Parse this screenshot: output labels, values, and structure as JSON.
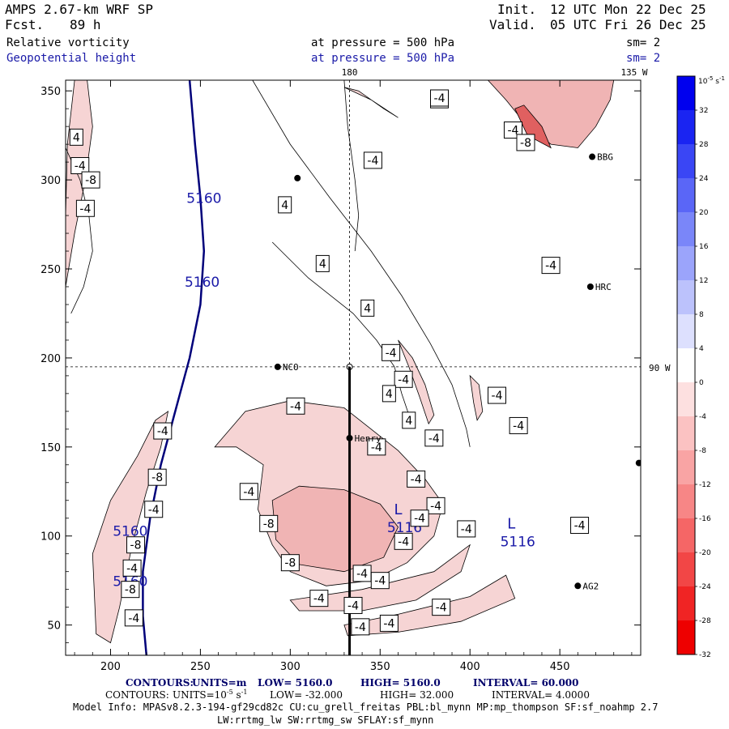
{
  "header": {
    "title": "AMPS 2.67-km WRF SP",
    "forecast_label": "Fcst.",
    "forecast_value": "89 h",
    "init_label": "Init.",
    "init_value": "12 UTC Mon 22 Dec 25",
    "valid_label": "Valid.",
    "valid_value": "05 UTC Fri 26 Dec 25",
    "field1": "Relative vorticity",
    "field2": "Geopotential height",
    "pressure1": "at pressure =  500 hPa",
    "pressure2": "at pressure =  500 hPa",
    "sm1": "sm= 2",
    "sm2": "sm= 2"
  },
  "colors": {
    "text": "#000000",
    "blue_text": "#1a1aa8",
    "height_contour": "#00007a",
    "footer_text": "#00006a",
    "neg_fill": "#f6d4d4",
    "neg_fill2": "#f0b4b4",
    "neg_fill3": "#e06060"
  },
  "chart_data": {
    "type": "contour",
    "title": "Relative vorticity / Geopotential height at 500 hPa",
    "xlim": [
      175,
      495
    ],
    "ylim": [
      33,
      356
    ],
    "x_ticks": [
      200,
      250,
      300,
      350,
      400,
      450
    ],
    "y_ticks": [
      50,
      100,
      150,
      200,
      250,
      300,
      350
    ],
    "top_label_180": "180",
    "top_label_135w": "135 W",
    "right_label_90w": "90 W",
    "ref_lines": {
      "x": 333,
      "y": 195
    },
    "stations": [
      {
        "name": "NCO",
        "x": 293,
        "y": 195
      },
      {
        "name": "Henry",
        "x": 333,
        "y": 155
      },
      {
        "name": "AG2",
        "x": 460,
        "y": 72
      },
      {
        "name": "HRC",
        "x": 467,
        "y": 240
      },
      {
        "name": "BBG",
        "x": 468,
        "y": 313
      },
      {
        "name": "",
        "x": 304,
        "y": 301
      },
      {
        "name": "",
        "x": 494,
        "y": 141
      }
    ],
    "cross_section": {
      "x": 333,
      "y_start": 195,
      "y_end": 33
    },
    "height_contour": {
      "value_label": "5160",
      "points": [
        [
          244,
          356
        ],
        [
          247,
          320
        ],
        [
          250,
          290
        ],
        [
          252,
          260
        ],
        [
          250,
          230
        ],
        [
          244,
          200
        ],
        [
          236,
          170
        ],
        [
          228,
          140
        ],
        [
          222,
          110
        ],
        [
          218,
          80
        ],
        [
          218,
          55
        ],
        [
          220,
          33
        ]
      ]
    },
    "height_labels": [
      {
        "text": "5160",
        "x": 252,
        "y": 287
      },
      {
        "text": "5160",
        "x": 251,
        "y": 240
      },
      {
        "text": "5160",
        "x": 211,
        "y": 100
      },
      {
        "text": "5160",
        "x": 211,
        "y": 72
      }
    ],
    "low_centers": [
      {
        "letter": "L",
        "value": "5116",
        "x": 360,
        "y": 104
      },
      {
        "letter": "L",
        "value": "5116",
        "x": 423,
        "y": 96
      }
    ],
    "vort_labels": [
      {
        "text": "-4",
        "x": 383,
        "y": 345
      },
      {
        "text": "-4",
        "x": 183,
        "y": 308
      },
      {
        "text": "-4",
        "x": 186,
        "y": 284
      },
      {
        "text": "4",
        "x": 181,
        "y": 324
      },
      {
        "text": "4",
        "x": 297,
        "y": 286
      },
      {
        "text": "4",
        "x": 318,
        "y": 253
      },
      {
        "text": "-4",
        "x": 346,
        "y": 311
      },
      {
        "text": "-4",
        "x": 383,
        "y": 346
      },
      {
        "text": "-4",
        "x": 424,
        "y": 328
      },
      {
        "text": "-4",
        "x": 445,
        "y": 252
      },
      {
        "text": "4",
        "x": 343,
        "y": 228
      },
      {
        "text": "-4",
        "x": 356,
        "y": 203
      },
      {
        "text": "-4",
        "x": 363,
        "y": 188
      },
      {
        "text": "4",
        "x": 355,
        "y": 180
      },
      {
        "text": "4",
        "x": 366,
        "y": 165
      },
      {
        "text": "-4",
        "x": 415,
        "y": 179
      },
      {
        "text": "-4",
        "x": 380,
        "y": 155
      },
      {
        "text": "-4",
        "x": 427,
        "y": 162
      },
      {
        "text": "-4",
        "x": 348,
        "y": 150
      },
      {
        "text": "-4",
        "x": 370,
        "y": 132
      },
      {
        "text": "-4",
        "x": 303,
        "y": 173
      },
      {
        "text": "-4",
        "x": 277,
        "y": 125
      },
      {
        "text": "-4",
        "x": 229,
        "y": 159
      },
      {
        "text": "-8",
        "x": 226,
        "y": 133
      },
      {
        "text": "-4",
        "x": 224,
        "y": 115
      },
      {
        "text": "-8",
        "x": 288,
        "y": 107
      },
      {
        "text": "-8",
        "x": 214,
        "y": 95
      },
      {
        "text": "-4",
        "x": 212,
        "y": 82
      },
      {
        "text": "-8",
        "x": 211,
        "y": 70
      },
      {
        "text": "-4",
        "x": 213,
        "y": 54
      },
      {
        "text": "-8",
        "x": 300,
        "y": 85
      },
      {
        "text": "-4",
        "x": 340,
        "y": 79
      },
      {
        "text": "-4",
        "x": 350,
        "y": 75
      },
      {
        "text": "-4",
        "x": 381,
        "y": 117
      },
      {
        "text": "-4",
        "x": 363,
        "y": 97
      },
      {
        "text": "-4",
        "x": 372,
        "y": 110
      },
      {
        "text": "-4",
        "x": 398,
        "y": 104
      },
      {
        "text": "-4",
        "x": 461,
        "y": 106
      },
      {
        "text": "-4",
        "x": 316,
        "y": 65
      },
      {
        "text": "-4",
        "x": 335,
        "y": 61
      },
      {
        "text": "-4",
        "x": 384,
        "y": 60
      },
      {
        "text": "-4",
        "x": 339,
        "y": 49
      },
      {
        "text": "-4",
        "x": 355,
        "y": 51
      },
      {
        "text": "-8",
        "x": 189,
        "y": 300
      },
      {
        "text": "-8",
        "x": 431,
        "y": 321
      }
    ],
    "vort_labels_note": "contour labels of relative vorticity (10^-5 s^-1)",
    "colorbar": {
      "unit": "10",
      "unit_exp": "-5",
      "unit_tail": "s",
      "unit_tail_exp": "-1",
      "ticks": [
        "32",
        "28",
        "24",
        "20",
        "16",
        "12",
        "8",
        "4",
        "0",
        "-4",
        "-8",
        "-12",
        "-16",
        "-20",
        "-24",
        "-28",
        "-32"
      ],
      "colors": [
        "#0000ee",
        "#1a24f2",
        "#3a46f5",
        "#5a66f7",
        "#7a86f9",
        "#9ba4fb",
        "#bcc2fc",
        "#dde0fe",
        "#ffffff",
        "#fde0e0",
        "#fbc2c2",
        "#f9a4a4",
        "#f78686",
        "#f56666",
        "#f24646",
        "#f02424",
        "#ee0000"
      ]
    }
  },
  "footer": {
    "line1_contours": "CONTOURS:",
    "line1_units": "UNITS=m",
    "line1_low": "LOW=  5160.0",
    "line1_high": "HIGH=  5160.0",
    "line1_interval": "INTERVAL=   60.000",
    "line2_contours": "CONTOURS:",
    "line2_units_pre": "UNITS=10",
    "line2_units_exp": "-5",
    "line2_units_mid": "s",
    "line2_units_exp2": "-1",
    "line2_low": "LOW= -32.000",
    "line2_high": "HIGH=  32.000",
    "line2_interval": "INTERVAL=   4.0000",
    "model_info": "Model Info: MPASv8.2.3-194-gf29cd82c CU:cu_grell_freitas PBL:bl_mynn MP:mp_thompson SF:sf_noahmp 2.7",
    "model_info2": "LW:rrtmg_lw SW:rrtmg_sw SFLAY:sf_mynn"
  }
}
